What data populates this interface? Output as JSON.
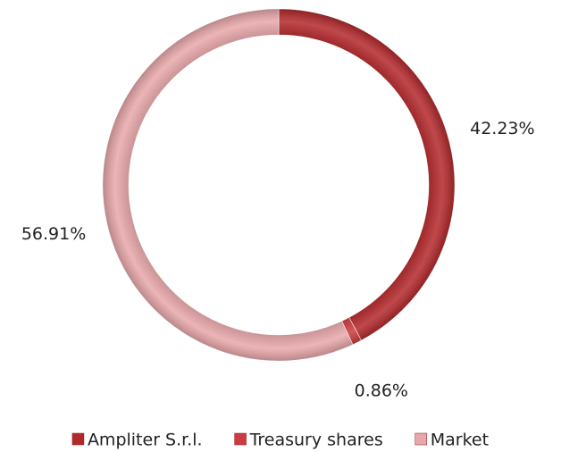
{
  "chart_data": {
    "type": "donut",
    "categories": [
      "Ampliter S.r.l.",
      "Treasury shares",
      "Market"
    ],
    "values": [
      42.23,
      0.86,
      56.91
    ],
    "value_labels": [
      "42.23%",
      "0.86%",
      "56.91%"
    ],
    "colors": [
      "#b3282b",
      "#cc3b3d",
      "#e8a7aa"
    ],
    "legend": "bottom"
  }
}
